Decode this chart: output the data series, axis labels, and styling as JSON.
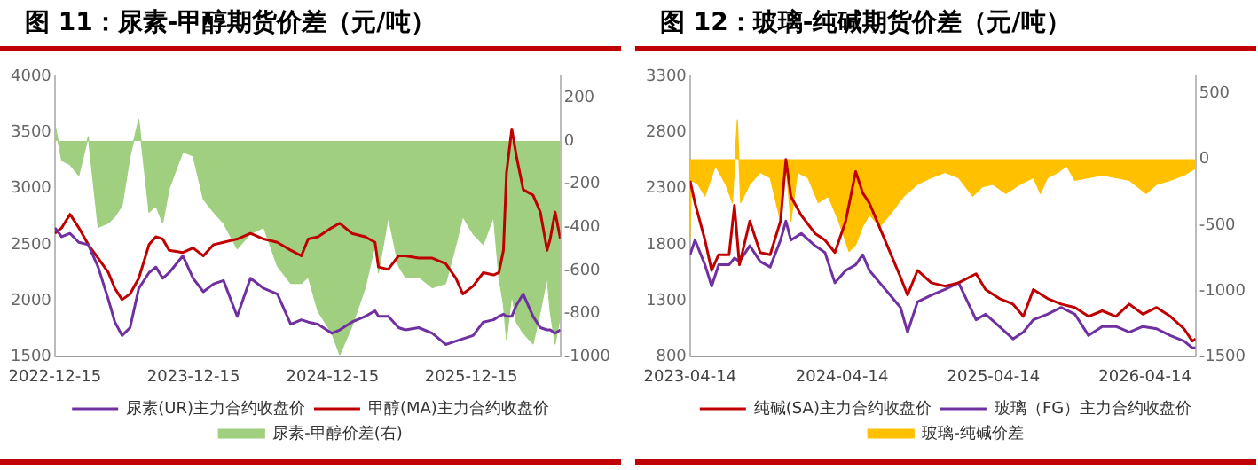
{
  "chart_data": [
    {
      "type": "line",
      "title": "图 11：尿素-甲醇期货价差（元/吨）",
      "x": [
        "2022-12-15",
        "2023-01-02",
        "2023-01-24",
        "2023-02-16",
        "2023-03-13",
        "2023-04-08",
        "2023-05-05",
        "2023-05-22",
        "2023-06-10",
        "2023-07-01",
        "2023-07-24",
        "2023-08-20",
        "2023-09-07",
        "2023-09-25",
        "2023-10-12",
        "2023-11-17",
        "2023-12-14",
        "2024-01-10",
        "2024-02-06",
        "2024-03-03",
        "2024-04-08",
        "2024-05-13",
        "2024-06-17",
        "2024-07-23",
        "2024-08-27",
        "2024-09-24",
        "2024-10-12",
        "2024-11-07",
        "2024-12-13",
        "2025-01-03",
        "2025-02-04",
        "2025-03-11",
        "2025-04-06",
        "2025-04-15",
        "2025-05-11",
        "2025-06-07",
        "2025-06-25",
        "2025-07-30",
        "2025-09-04",
        "2025-10-09",
        "2025-11-05",
        "2025-11-23",
        "2025-12-20",
        "2026-01-16",
        "2026-02-12",
        "2026-02-26",
        "2026-03-10",
        "2026-03-18",
        "2026-04-01",
        "2026-04-13",
        "2026-05-01",
        "2026-05-27",
        "2026-06-15",
        "2026-07-03",
        "2026-07-11",
        "2026-07-24",
        "2026-08-07"
      ],
      "series": [
        {
          "name": "尿素-甲醇价差(右)",
          "type": "area",
          "axis": "y2",
          "color": "#9fcf7f",
          "values": [
            80,
            -90,
            -110,
            -160,
            20,
            -400,
            -380,
            -350,
            -300,
            -70,
            100,
            -330,
            -300,
            -380,
            -220,
            -50,
            -70,
            -270,
            -330,
            -380,
            -500,
            -430,
            -400,
            -580,
            -660,
            -660,
            -630,
            -790,
            -890,
            -990,
            -860,
            -680,
            -480,
            -610,
            -350,
            -580,
            -630,
            -630,
            -680,
            -660,
            -480,
            -350,
            -430,
            -480,
            -350,
            -630,
            -760,
            -920,
            -710,
            -840,
            -890,
            -940,
            -790,
            -630,
            -790,
            -940,
            -810
          ]
        },
        {
          "name": "尿素(UR)主力合约收盘价",
          "color": "#7030a0",
          "values": [
            2650,
            2570,
            2600,
            2520,
            2500,
            2300,
            2010,
            1810,
            1690,
            1760,
            2110,
            2250,
            2300,
            2200,
            2250,
            2400,
            2200,
            2080,
            2150,
            2180,
            1860,
            2200,
            2110,
            2060,
            1790,
            1830,
            1810,
            1790,
            1710,
            1740,
            1810,
            1860,
            1910,
            1860,
            1860,
            1760,
            1740,
            1760,
            1710,
            1610,
            1640,
            1660,
            1690,
            1810,
            1830,
            1860,
            1880,
            1860,
            1860,
            1960,
            2060,
            1860,
            1760,
            1740,
            1740,
            1710,
            1740
          ]
        },
        {
          "name": "甲醇(MA)主力合约收盘价",
          "color": "#c00000",
          "values": [
            2600,
            2650,
            2770,
            2650,
            2500,
            2380,
            2250,
            2110,
            2010,
            2060,
            2200,
            2500,
            2570,
            2550,
            2450,
            2430,
            2470,
            2400,
            2500,
            2520,
            2550,
            2600,
            2550,
            2520,
            2450,
            2400,
            2550,
            2570,
            2650,
            2690,
            2600,
            2570,
            2520,
            2300,
            2280,
            2400,
            2400,
            2380,
            2380,
            2330,
            2200,
            2060,
            2130,
            2250,
            2230,
            2250,
            2450,
            3140,
            3530,
            3290,
            2990,
            2940,
            2790,
            2450,
            2550,
            2790,
            2550
          ]
        }
      ],
      "xlim": [
        "2022-12-15",
        "2026-08-07"
      ],
      "xticks": [
        "2022-12-15",
        "2023-12-15",
        "2024-12-15",
        "2025-12-15"
      ],
      "ylim": [
        1500,
        4000
      ],
      "yticks": [
        1500,
        2000,
        2500,
        3000,
        3500,
        4000
      ],
      "y2lim": [
        -1000,
        300
      ],
      "y2ticks": [
        -1000,
        -800,
        -600,
        -400,
        -200,
        0,
        200
      ],
      "legend": "bottom"
    },
    {
      "type": "line",
      "title": "图 12：玻璃-纯碱期货价差（元/吨）",
      "x": [
        "2023-04-14",
        "2023-04-26",
        "2023-05-20",
        "2023-06-05",
        "2023-06-22",
        "2023-07-17",
        "2023-07-30",
        "2023-08-11",
        "2023-09-05",
        "2023-09-30",
        "2023-10-24",
        "2023-11-18",
        "2023-12-01",
        "2023-12-13",
        "2024-01-07",
        "2024-02-09",
        "2024-03-04",
        "2024-03-28",
        "2024-04-23",
        "2024-05-17",
        "2024-06-03",
        "2024-06-19",
        "2024-07-14",
        "2024-08-08",
        "2024-09-02",
        "2024-09-19",
        "2024-10-13",
        "2024-11-15",
        "2024-12-18",
        "2025-01-20",
        "2025-03-03",
        "2025-03-26",
        "2025-04-28",
        "2025-05-31",
        "2025-06-25",
        "2025-07-19",
        "2025-08-22",
        "2025-09-24",
        "2025-10-27",
        "2025-11-29",
        "2026-01-01",
        "2026-02-03",
        "2026-03-07",
        "2026-04-09",
        "2026-05-12",
        "2026-06-14",
        "2026-07-17",
        "2026-08-06",
        "2026-08-14"
      ],
      "series": [
        {
          "name": "玻璃-纯碱价差",
          "type": "area",
          "axis": "y2",
          "color": "#ffc000",
          "x": [
            "2023-04-14",
            "2023-04-17",
            "2023-05-03",
            "2023-05-20",
            "2023-06-14",
            "2023-07-09",
            "2023-07-25",
            "2023-08-06",
            "2023-08-14",
            "2023-09-05",
            "2023-09-30",
            "2023-10-24",
            "2023-11-18",
            "2023-12-01",
            "2023-12-13",
            "2023-12-29",
            "2024-01-23",
            "2024-02-17",
            "2024-03-12",
            "2024-04-06",
            "2024-05-01",
            "2024-05-17",
            "2024-06-03",
            "2024-06-19",
            "2024-07-14",
            "2024-08-08",
            "2024-09-10",
            "2024-10-13",
            "2024-11-15",
            "2024-12-18",
            "2025-01-20",
            "2025-02-23",
            "2025-03-18",
            "2025-04-12",
            "2025-05-14",
            "2025-06-17",
            "2025-07-19",
            "2025-08-05",
            "2025-08-22",
            "2025-09-16",
            "2025-10-07",
            "2025-10-27",
            "2025-11-29",
            "2026-01-01",
            "2026-02-03",
            "2026-03-07",
            "2026-04-17",
            "2026-05-12",
            "2026-06-14",
            "2026-07-17",
            "2026-08-02",
            "2026-08-14"
          ],
          "values": [
            -600,
            -160,
            -190,
            -280,
            -50,
            -190,
            -330,
            300,
            -330,
            -190,
            -100,
            -140,
            -470,
            -50,
            -470,
            -100,
            -140,
            -330,
            -280,
            -470,
            -700,
            -650,
            -510,
            -420,
            -510,
            -420,
            -280,
            -190,
            -140,
            -100,
            -140,
            -280,
            -210,
            -190,
            -260,
            -190,
            -140,
            -260,
            -140,
            -100,
            -50,
            -160,
            -140,
            -120,
            -140,
            -160,
            -260,
            -190,
            -160,
            -120,
            -90,
            -70
          ]
        },
        {
          "name": "纯碱(SA)主力合约收盘价",
          "color": "#c00000",
          "values": [
            2370,
            2170,
            1840,
            1570,
            1710,
            1710,
            2150,
            1620,
            2010,
            1730,
            1710,
            2010,
            2560,
            2230,
            2060,
            1900,
            1840,
            1730,
            2010,
            2450,
            2260,
            2170,
            1950,
            1730,
            1510,
            1350,
            1570,
            1460,
            1430,
            1460,
            1540,
            1400,
            1320,
            1270,
            1160,
            1400,
            1320,
            1270,
            1240,
            1160,
            1210,
            1160,
            1270,
            1180,
            1240,
            1160,
            1050,
            940,
            960
          ]
        },
        {
          "name": "玻璃（FG）主力合约收盘价",
          "color": "#7030a0",
          "values": [
            1710,
            1840,
            1620,
            1430,
            1620,
            1620,
            1680,
            1650,
            1790,
            1650,
            1600,
            1840,
            2010,
            1840,
            1900,
            1790,
            1730,
            1460,
            1570,
            1620,
            1710,
            1570,
            1460,
            1350,
            1240,
            1020,
            1290,
            1350,
            1400,
            1460,
            1130,
            1180,
            1070,
            960,
            1020,
            1130,
            1180,
            1240,
            1180,
            990,
            1070,
            1070,
            1020,
            1070,
            1050,
            990,
            940,
            880,
            880
          ]
        }
      ],
      "xlim": [
        "2023-04-14",
        "2026-08-14"
      ],
      "xticks": [
        "2023-04-14",
        "2024-04-14",
        "2025-04-14",
        "2026-04-14"
      ],
      "ylim": [
        800,
        3300
      ],
      "yticks": [
        800,
        1300,
        1800,
        2300,
        2800,
        3300
      ],
      "y2lim": [
        -1500,
        630
      ],
      "y2ticks": [
        -1500,
        -1000,
        -500,
        0,
        500
      ],
      "legend": "bottom"
    }
  ]
}
